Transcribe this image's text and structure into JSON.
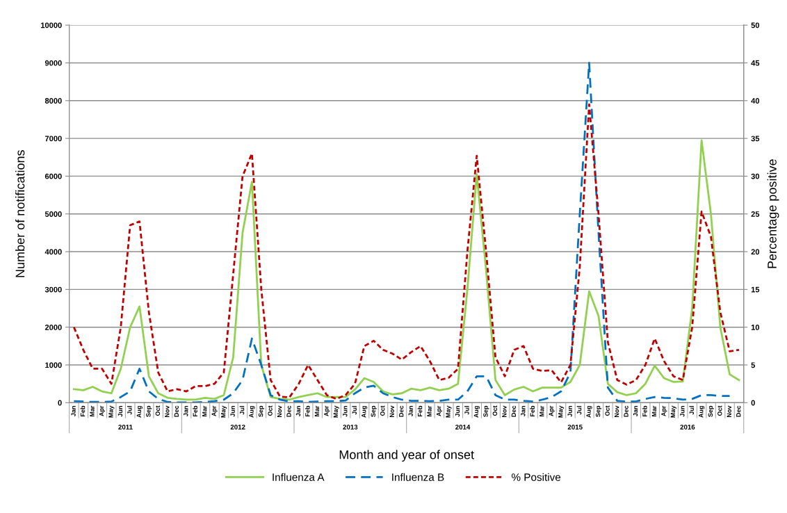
{
  "chart_data": {
    "type": "line",
    "xlabel": "Month and year of onset",
    "ylabel": "Number of notifications",
    "y2label": "Percentage positive",
    "categories": [
      "Jan",
      "Feb",
      "Mar",
      "Apr",
      "May",
      "Jun",
      "Jul",
      "Aug",
      "Sep",
      "Oct",
      "Nov",
      "Dec",
      "Jan",
      "Feb",
      "Mar",
      "Apr",
      "May",
      "Jun",
      "Jul",
      "Aug",
      "Sep",
      "Oct",
      "Nov",
      "Dec",
      "Jan",
      "Feb",
      "Mar",
      "Apr",
      "May",
      "Jun",
      "Jul",
      "Aug",
      "Sep",
      "Oct",
      "Nov",
      "Dec",
      "Jan",
      "Feb",
      "Mar",
      "Apr",
      "May",
      "Jun",
      "Jul",
      "Aug",
      "Sep",
      "Oct",
      "Nov",
      "Dec",
      "Jan",
      "Feb",
      "Mar",
      "Apr",
      "May",
      "Jun",
      "Jul",
      "Aug",
      "Sep",
      "Oct",
      "Nov",
      "Dec",
      "Jan",
      "Feb",
      "Mar",
      "Apr",
      "May",
      "Jun",
      "Jul",
      "Aug",
      "Sep",
      "Oct",
      "Nov",
      "Dec"
    ],
    "annotations": [
      "2011",
      "2012",
      "2013",
      "2014",
      "2015",
      "2016"
    ],
    "series": [
      {
        "name": "Influenza A",
        "color": "#92d050",
        "line_style": "solid",
        "values": [
          360,
          330,
          420,
          300,
          250,
          900,
          2000,
          2550,
          700,
          250,
          130,
          100,
          80,
          80,
          130,
          100,
          200,
          1200,
          4500,
          5850,
          1000,
          150,
          100,
          80,
          150,
          200,
          250,
          150,
          150,
          150,
          350,
          650,
          550,
          300,
          220,
          250,
          370,
          330,
          400,
          330,
          370,
          500,
          3000,
          6050,
          3500,
          600,
          200,
          350,
          420,
          300,
          400,
          400,
          400,
          550,
          1000,
          2950,
          2300,
          500,
          280,
          200,
          250,
          500,
          980,
          650,
          550,
          560,
          2500,
          6950,
          5000,
          2000,
          750,
          600
        ]
      },
      {
        "name": "Influenza B",
        "color": "#0070c0",
        "line_style": "dashed",
        "values": [
          40,
          30,
          20,
          20,
          30,
          150,
          300,
          900,
          300,
          100,
          20,
          10,
          10,
          10,
          20,
          40,
          80,
          250,
          600,
          1700,
          1000,
          200,
          80,
          30,
          40,
          20,
          30,
          40,
          40,
          60,
          250,
          400,
          450,
          250,
          150,
          80,
          50,
          50,
          40,
          50,
          80,
          80,
          300,
          700,
          700,
          200,
          80,
          80,
          50,
          30,
          80,
          150,
          300,
          800,
          5000,
          9000,
          4500,
          400,
          50,
          30,
          30,
          100,
          150,
          130,
          120,
          80,
          100,
          200,
          200,
          180,
          180,
          null
        ]
      },
      {
        "name": "% Positive",
        "color": "#c00000",
        "line_style": "dotted",
        "axis": "y2",
        "values": [
          10,
          7,
          4.5,
          4.5,
          2.5,
          10,
          23.5,
          24,
          12,
          4,
          1.5,
          1.8,
          1.5,
          2.2,
          2.2,
          2.5,
          4,
          17,
          30,
          33,
          15,
          3,
          0.8,
          0.7,
          2.5,
          5,
          3,
          1,
          0.5,
          1,
          2.5,
          7.5,
          8.2,
          7,
          6.5,
          5.7,
          6.7,
          7.5,
          5.5,
          3,
          3.3,
          4.5,
          20,
          32.7,
          20,
          6,
          3.5,
          7,
          7.5,
          4.5,
          4.2,
          4.3,
          2.7,
          5,
          18,
          39.5,
          25,
          8,
          3,
          2.4,
          3,
          5,
          8.5,
          5.5,
          3.5,
          3,
          10,
          25.3,
          22,
          12,
          6.8,
          7
        ]
      }
    ],
    "ylim": [
      0,
      10000
    ],
    "yticks": [
      0,
      1000,
      2000,
      3000,
      4000,
      5000,
      6000,
      7000,
      8000,
      9000,
      10000
    ],
    "y2lim": [
      0,
      50
    ],
    "y2ticks": [
      0,
      5,
      10,
      15,
      20,
      25,
      30,
      35,
      40,
      45,
      50
    ],
    "grid": "y",
    "legend": "bottom",
    "marker": "none"
  }
}
